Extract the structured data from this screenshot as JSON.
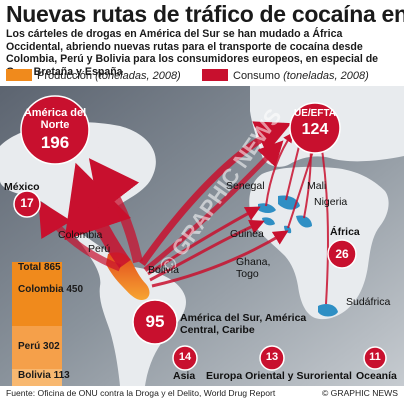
{
  "title": "Nuevas rutas de tráfico de cocaína en África",
  "subtitle": "Los cárteles de drogas en América del Sur se han mudado a África Occidental, abriendo nuevas rutas para el transporte de cocaína desde Colombia, Perú y Bolivia para los consumidores europeos, en especial de Gran Bretaña y España",
  "legend": {
    "produccion": "Producción",
    "produccion_unit": "(toneladas, 2008)",
    "consumo": "Consumo",
    "consumo_unit": "(toneladas, 2008)",
    "produccion_color": "#f08a1c",
    "consumo_color": "#c8102e"
  },
  "consumption": {
    "norteamerica": {
      "name": "América del Norte",
      "value": "196"
    },
    "ue": {
      "name": "UE/EFTA",
      "value": "124"
    },
    "mexico": {
      "name": "México",
      "value": "17"
    },
    "africa": {
      "name": "África",
      "value": "26"
    },
    "sudamerica": {
      "name": "América del Sur, América Central, Caribe",
      "value": "95"
    },
    "asia": {
      "name": "Asia",
      "value": "14"
    },
    "europa_or": {
      "name": "Europa Oriental y Suroriental",
      "value": "13"
    },
    "oceania": {
      "name": "Oceanía",
      "value": "11"
    }
  },
  "places": {
    "senegal": "Senegal",
    "mali": "Mali",
    "nigeria": "Nigeria",
    "guinea": "Guinea",
    "ghana_togo": "Ghana, Togo",
    "sudafrica": "Sudáfrica",
    "colombia": "Colombia",
    "peru": "Perú",
    "bolivia": "Bolivia"
  },
  "production": {
    "total_label": "Total",
    "total_value": "865",
    "rows": [
      {
        "name": "Colombia",
        "value": "450"
      },
      {
        "name": "Perú",
        "value": "302"
      },
      {
        "name": "Bolivia",
        "value": "113"
      }
    ]
  },
  "watermark": "© GRAPHIC NEWS",
  "footer": "Fuente: Oficina de ONU contra la Droga y el Delito, World Drug Report",
  "copyright": "© GRAPHIC NEWS"
}
